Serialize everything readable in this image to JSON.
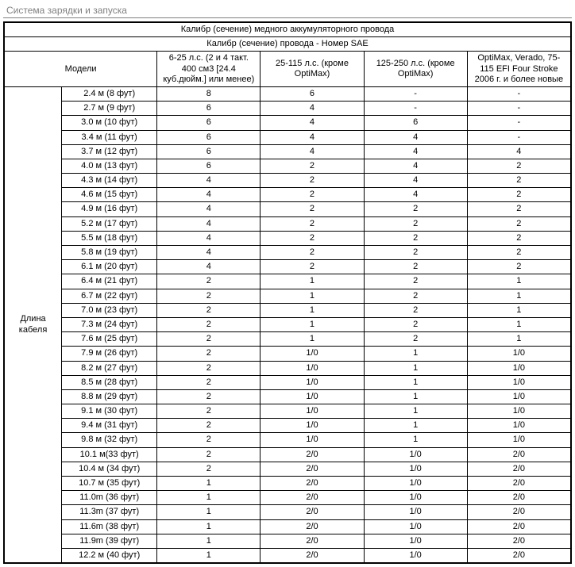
{
  "pageTitle": "Система зарядки и запуска",
  "headers": {
    "top1": "Калибр (сечение) медного аккумуляторного провода",
    "top2": "Калибр (сечение) провода - Номер SAE",
    "models": "Модели",
    "col1": "6-25 л.с. (2 и 4 такт. 400 см3 [24.4 куб.дюйм.] или менее)",
    "col2": "25-115 л.с. (кроме OptiMax)",
    "col3": "125-250 л.с. (кроме OptiMax)",
    "col4": "OptiMax, Verado, 75-115 EFI Four Stroke 2006 г. и более новые",
    "rowGroup": "Длина кабеля"
  },
  "rows": [
    {
      "len": "2.4 м (8 фут)",
      "v": [
        "8",
        "6",
        "-",
        "-"
      ]
    },
    {
      "len": "2.7 м (9 фут)",
      "v": [
        "6",
        "4",
        "-",
        "-"
      ]
    },
    {
      "len": "3.0 м (10 фут)",
      "v": [
        "6",
        "4",
        "6",
        "-"
      ]
    },
    {
      "len": "3.4 м (11 фут)",
      "v": [
        "6",
        "4",
        "4",
        "-"
      ]
    },
    {
      "len": "3.7 м (12 фут)",
      "v": [
        "6",
        "4",
        "4",
        "4"
      ]
    },
    {
      "len": "4.0 м (13 фут)",
      "v": [
        "6",
        "2",
        "4",
        "2"
      ]
    },
    {
      "len": "4.3 м (14 фут)",
      "v": [
        "4",
        "2",
        "4",
        "2"
      ]
    },
    {
      "len": "4.6 м (15 фут)",
      "v": [
        "4",
        "2",
        "4",
        "2"
      ]
    },
    {
      "len": "4.9 м (16 фут)",
      "v": [
        "4",
        "2",
        "2",
        "2"
      ]
    },
    {
      "len": "5.2 м (17 фут)",
      "v": [
        "4",
        "2",
        "2",
        "2"
      ]
    },
    {
      "len": "5.5 м (18 фут)",
      "v": [
        "4",
        "2",
        "2",
        "2"
      ]
    },
    {
      "len": "5.8 м (19 фут)",
      "v": [
        "4",
        "2",
        "2",
        "2"
      ]
    },
    {
      "len": "6.1 м (20 фут)",
      "v": [
        "4",
        "2",
        "2",
        "2"
      ]
    },
    {
      "len": "6.4 м (21 фут)",
      "v": [
        "2",
        "1",
        "2",
        "1"
      ]
    },
    {
      "len": "6.7 м (22 фут)",
      "v": [
        "2",
        "1",
        "2",
        "1"
      ]
    },
    {
      "len": "7.0 м (23 фут)",
      "v": [
        "2",
        "1",
        "2",
        "1"
      ]
    },
    {
      "len": "7.3 м (24 фут)",
      "v": [
        "2",
        "1",
        "2",
        "1"
      ]
    },
    {
      "len": "7.6 м (25 фут)",
      "v": [
        "2",
        "1",
        "2",
        "1"
      ]
    },
    {
      "len": "7.9 м (26 фут)",
      "v": [
        "2",
        "1/0",
        "1",
        "1/0"
      ]
    },
    {
      "len": "8.2 м (27 фут)",
      "v": [
        "2",
        "1/0",
        "1",
        "1/0"
      ]
    },
    {
      "len": "8.5 м (28 фут)",
      "v": [
        "2",
        "1/0",
        "1",
        "1/0"
      ]
    },
    {
      "len": "8.8 м (29 фут)",
      "v": [
        "2",
        "1/0",
        "1",
        "1/0"
      ]
    },
    {
      "len": "9.1 м (30 фут)",
      "v": [
        "2",
        "1/0",
        "1",
        "1/0"
      ]
    },
    {
      "len": "9.4 м (31 фут)",
      "v": [
        "2",
        "1/0",
        "1",
        "1/0"
      ]
    },
    {
      "len": "9.8 м (32 фут)",
      "v": [
        "2",
        "1/0",
        "1",
        "1/0"
      ]
    },
    {
      "len": "10.1 м(33 фут)",
      "v": [
        "2",
        "2/0",
        "1/0",
        "2/0"
      ]
    },
    {
      "len": "10.4 м (34 фут)",
      "v": [
        "2",
        "2/0",
        "1/0",
        "2/0"
      ]
    },
    {
      "len": "10.7 м (35 фут)",
      "v": [
        "1",
        "2/0",
        "1/0",
        "2/0"
      ]
    },
    {
      "len": "11.0m (36 фут)",
      "v": [
        "1",
        "2/0",
        "1/0",
        "2/0"
      ]
    },
    {
      "len": "11.3m (37 фут)",
      "v": [
        "1",
        "2/0",
        "1/0",
        "2/0"
      ]
    },
    {
      "len": "11.6m (38 фут)",
      "v": [
        "1",
        "2/0",
        "1/0",
        "2/0"
      ]
    },
    {
      "len": "11.9m (39 фут)",
      "v": [
        "1",
        "2/0",
        "1/0",
        "2/0"
      ]
    },
    {
      "len": "12.2 м (40 фут)",
      "v": [
        "1",
        "2/0",
        "1/0",
        "2/0"
      ]
    }
  ],
  "style": {
    "borderColor": "#000000",
    "background": "#ffffff",
    "fontSize": 11
  }
}
